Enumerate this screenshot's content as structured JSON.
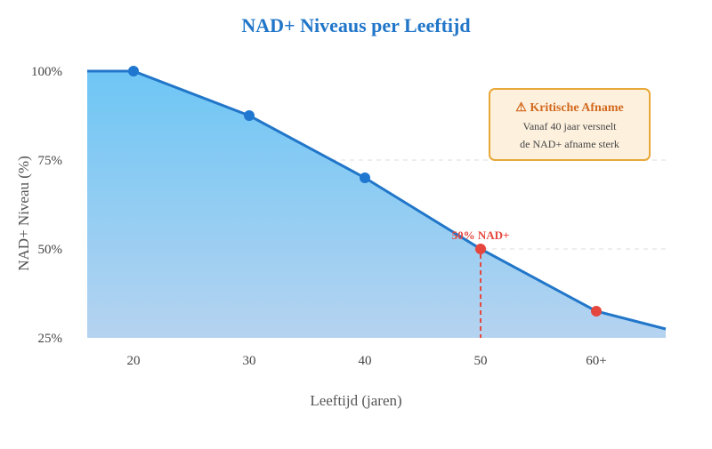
{
  "chart_data": {
    "type": "area",
    "title": "NAD+ Niveaus per Leeftijd",
    "xlabel": "Leeftijd (jaren)",
    "ylabel": "NAD+ Niveau (%)",
    "ylim": [
      25,
      100
    ],
    "y_ticks": [
      "25%",
      "50%",
      "75%",
      "100%"
    ],
    "x_tick_labels": [
      "20",
      "30",
      "40",
      "50",
      "60+"
    ],
    "grid": "horizontal dashed at 50% and 75%",
    "points": [
      {
        "x": 16,
        "y": 100,
        "marker": false
      },
      {
        "x": 20,
        "y": 100,
        "marker": true,
        "color": "#1f77d0"
      },
      {
        "x": 30,
        "y": 87.5,
        "marker": true,
        "color": "#1f77d0"
      },
      {
        "x": 40,
        "y": 70,
        "marker": true,
        "color": "#1f77d0"
      },
      {
        "x": 50,
        "y": 50,
        "marker": true,
        "color": "#e5473f"
      },
      {
        "x": 60,
        "y": 32.5,
        "marker": true,
        "color": "#e5473f"
      },
      {
        "x": 66,
        "y": 27.5,
        "marker": false
      }
    ],
    "annotation_point": {
      "label": "50% NAD+",
      "x": 50,
      "y": 50
    },
    "callout": {
      "title": "⚠ Kritische Afname",
      "line1": "Vanaf 40 jaar versnelt",
      "line2": "de NAD+ afname sterk"
    },
    "colors": {
      "line": "#2176c9",
      "title": "#2176c9",
      "highlight": "#e5473f",
      "callout_border": "#e8a838",
      "callout_bg": "#fdf1de",
      "callout_title": "#d2691e"
    }
  }
}
